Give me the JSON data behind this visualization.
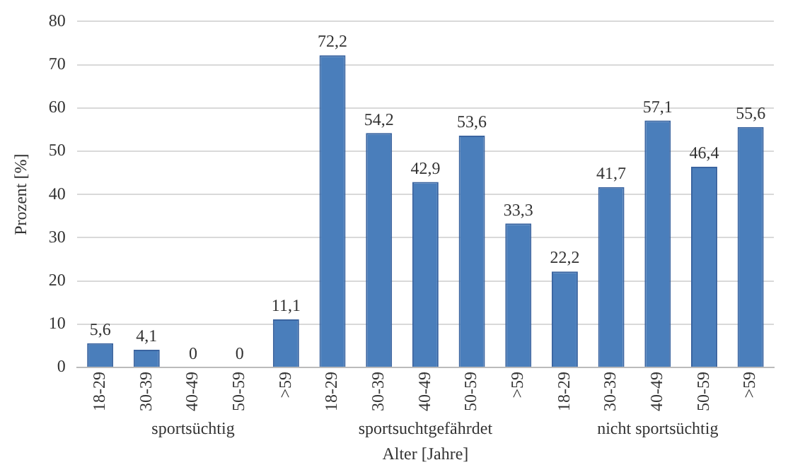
{
  "chart_data": {
    "type": "bar",
    "xlabel": "Alter [Jahre]",
    "ylabel": "Prozent [%]",
    "categories": [
      "18-29",
      "30-39",
      "40-49",
      "50-59",
      ">59",
      "18-29",
      "30-39",
      "40-49",
      "50-59",
      ">59",
      "18-29",
      "30-39",
      "40-49",
      "50-59",
      ">59"
    ],
    "values": [
      5.6,
      4.1,
      0,
      0,
      11.1,
      72.2,
      54.2,
      42.9,
      53.6,
      33.3,
      22.2,
      41.7,
      57.1,
      46.4,
      55.6
    ],
    "value_labels": [
      "5,6",
      "4,1",
      "0",
      "0",
      "11,1",
      "72,2",
      "54,2",
      "42,9",
      "53,6",
      "33,3",
      "22,2",
      "41,7",
      "57,1",
      "46,4",
      "55,6"
    ],
    "color": "#4a7ebb",
    "ylim": [
      0,
      80
    ],
    "yticks": [
      0,
      10,
      20,
      30,
      40,
      50,
      60,
      70,
      80
    ],
    "grid": "y",
    "legend": false,
    "annotations": [
      "sportsüchtig",
      "sportsuchtgefährdet",
      "nicht sportsüchtig"
    ]
  }
}
